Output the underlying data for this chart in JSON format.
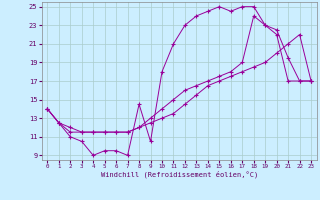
{
  "xlabel": "Windchill (Refroidissement éolien,°C)",
  "bg_color": "#cceeff",
  "line_color": "#990099",
  "grid_color": "#aacccc",
  "xlim": [
    -0.5,
    23.5
  ],
  "ylim": [
    8.5,
    25.5
  ],
  "yticks": [
    9,
    11,
    13,
    15,
    17,
    19,
    21,
    23,
    25
  ],
  "xticks": [
    0,
    1,
    2,
    3,
    4,
    5,
    6,
    7,
    8,
    9,
    10,
    11,
    12,
    13,
    14,
    15,
    16,
    17,
    18,
    19,
    20,
    21,
    22,
    23
  ],
  "line1_x": [
    0,
    1,
    2,
    3,
    4,
    5,
    6,
    7,
    8,
    9,
    10,
    11,
    12,
    13,
    14,
    15,
    16,
    17,
    18,
    19,
    20,
    21,
    22,
    23
  ],
  "line1_y": [
    14.0,
    12.5,
    11.0,
    10.5,
    9.0,
    9.5,
    9.5,
    9.0,
    14.5,
    10.5,
    18.0,
    21.0,
    23.0,
    24.0,
    24.5,
    25.0,
    24.5,
    25.0,
    25.0,
    23.0,
    22.0,
    17.0,
    17.0,
    17.0
  ],
  "line2_x": [
    0,
    1,
    2,
    3,
    4,
    5,
    6,
    7,
    8,
    9,
    10,
    11,
    12,
    13,
    14,
    15,
    16,
    17,
    18,
    19,
    20,
    21,
    22,
    23
  ],
  "line2_y": [
    14.0,
    12.5,
    11.5,
    11.5,
    11.5,
    11.5,
    11.5,
    11.5,
    12.0,
    12.5,
    13.0,
    13.5,
    14.5,
    15.5,
    16.5,
    17.0,
    17.5,
    18.0,
    18.5,
    19.0,
    20.0,
    21.0,
    22.0,
    17.0
  ],
  "line3_x": [
    0,
    1,
    2,
    3,
    4,
    5,
    6,
    7,
    8,
    9,
    10,
    11,
    12,
    13,
    14,
    15,
    16,
    17,
    18,
    19,
    20,
    21,
    22,
    23
  ],
  "line3_y": [
    14.0,
    12.5,
    12.0,
    11.5,
    11.5,
    11.5,
    11.5,
    11.5,
    12.0,
    13.0,
    14.0,
    15.0,
    16.0,
    16.5,
    17.0,
    17.5,
    18.0,
    19.0,
    24.0,
    23.0,
    22.5,
    19.5,
    17.0,
    17.0
  ]
}
